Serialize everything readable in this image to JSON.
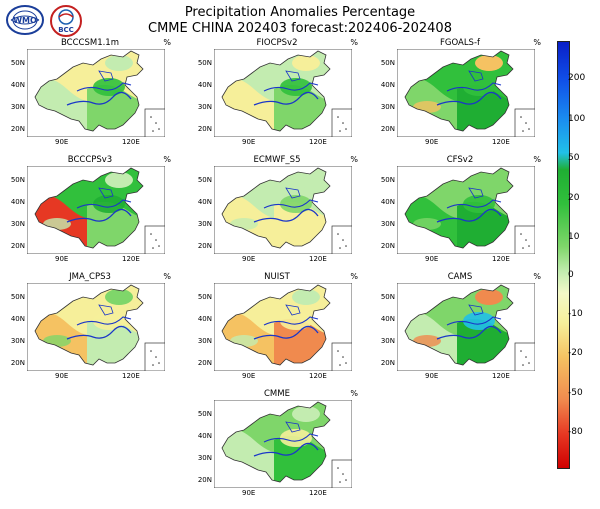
{
  "title_line1": "Precipitation Anomalies Percentage",
  "title_line2": "CMME CHINA 202403 forecast:202406-202408",
  "logos": {
    "left": "wmo-logo",
    "right_text": "BCC"
  },
  "unit": "%",
  "y_ticks": [
    "50N",
    "40N",
    "30N",
    "20N"
  ],
  "x_ticks": [
    "90E",
    "120E"
  ],
  "panels": [
    {
      "name": "BCCCSM1.1m"
    },
    {
      "name": "FIOCPSv2"
    },
    {
      "name": "FGOALS-f"
    },
    {
      "name": "BCCCPSv3"
    },
    {
      "name": "ECMWF_S5"
    },
    {
      "name": "CFSv2"
    },
    {
      "name": "JMA_CPS3"
    },
    {
      "name": "NUIST"
    },
    {
      "name": "CAMS"
    },
    {
      "name": "CMME"
    }
  ],
  "colorbar": {
    "labels": [
      "200",
      "100",
      "50",
      "20",
      "10",
      "0",
      "-10",
      "-20",
      "-50",
      "-80"
    ],
    "colors": {
      "max": "#0a1fc8",
      "wet": "#1fae33",
      "neutral": "#f4f9c8",
      "dry": "#f08a4e",
      "min": "#d00000"
    }
  }
}
